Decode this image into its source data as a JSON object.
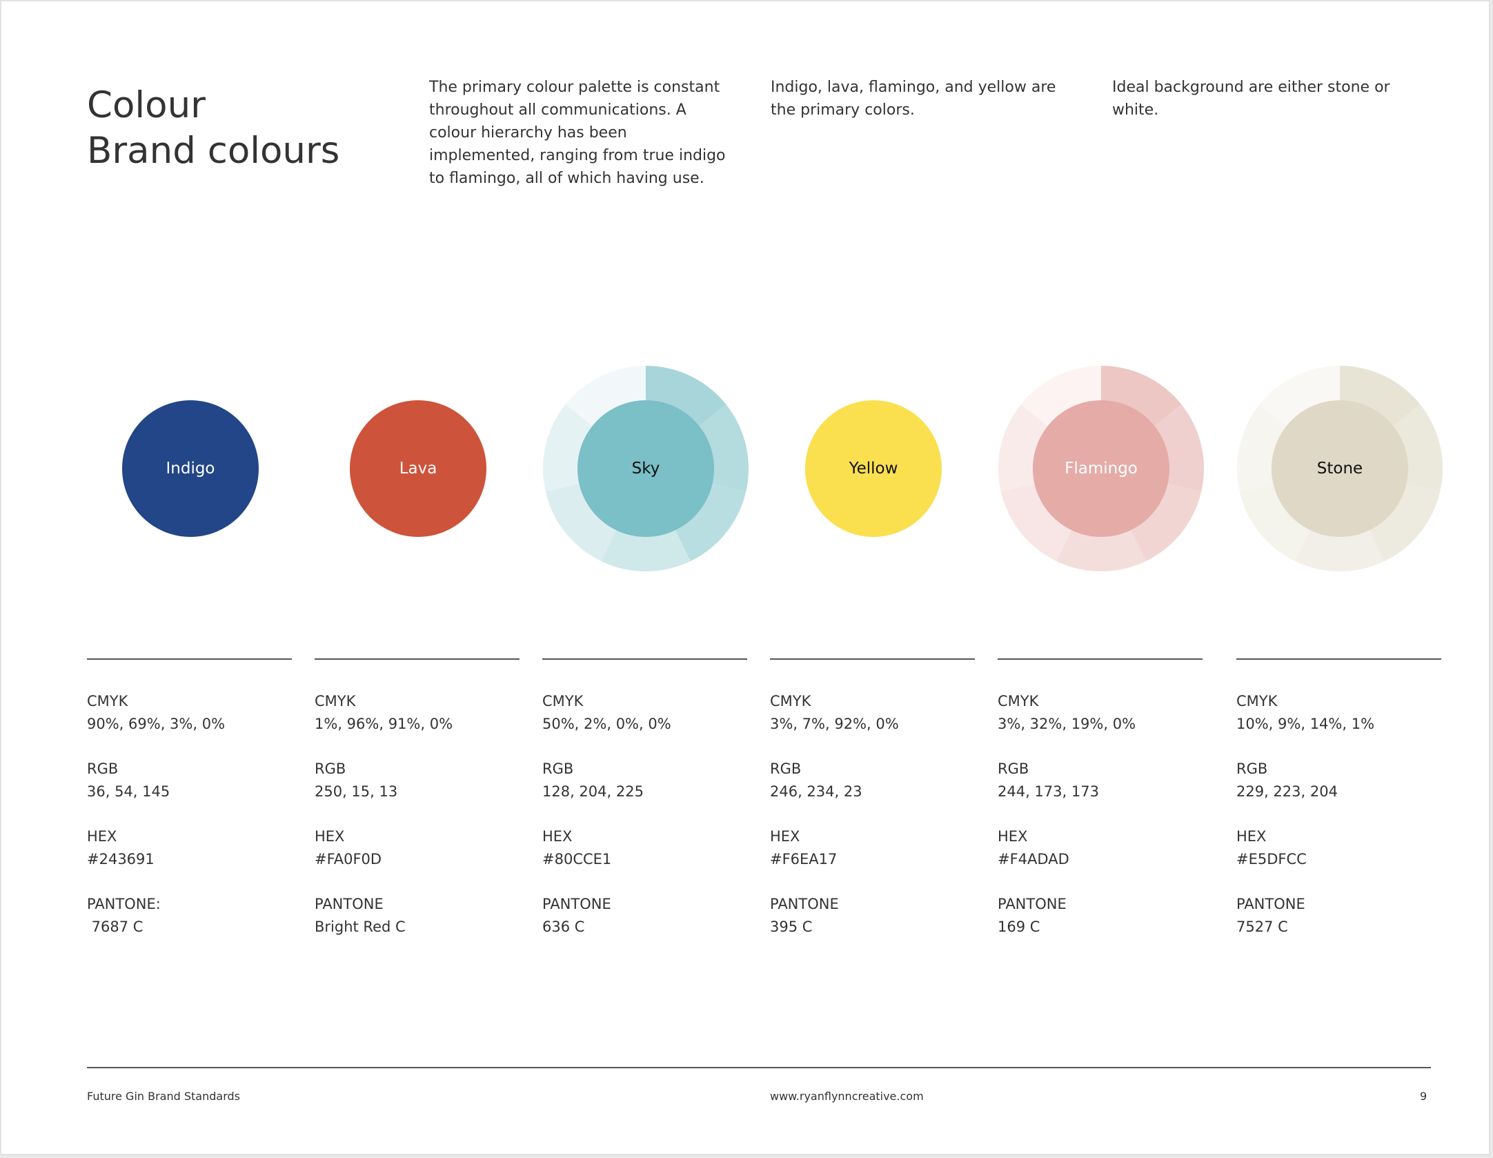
{
  "title": {
    "line1": "Colour",
    "line2": "Brand colours"
  },
  "intro": [
    "The primary colour palette is constant throughout all communications. A colour hierarchy has been implemented, ranging from true indigo to flamingo, all of which having use.",
    "Indigo, lava, flamingo, and yellow are the primary colors.",
    "Ideal background are either stone or white."
  ],
  "swatches": [
    {
      "name": "Indigo",
      "fill": "#224687",
      "label_color": "#ffffff",
      "ring": false,
      "cmyk_label": "CMYK",
      "cmyk": "90%, 69%, 3%, 0%",
      "rgb_label": "RGB",
      "rgb": "36, 54, 145",
      "hex_label": "HEX",
      "hex": "#243691",
      "pantone_label": "PANTONE:",
      "pantone": " 7687 C"
    },
    {
      "name": "Lava",
      "fill": "#cd533b",
      "label_color": "#ffffff",
      "ring": false,
      "cmyk_label": "CMYK",
      "cmyk": "1%, 96%, 91%, 0%",
      "rgb_label": "RGB",
      "rgb": "250, 15, 13",
      "hex_label": "HEX",
      "hex": "#FA0F0D",
      "pantone_label": "PANTONE",
      "pantone": "Bright Red C"
    },
    {
      "name": "Sky",
      "fill": "#7bbfc7",
      "label_color": "#111111",
      "ring": true,
      "ring_colors": [
        "#a8d5d9",
        "#b4dbde",
        "#b9dee1",
        "#cfe8ea",
        "#dcedef",
        "#e5f2f3",
        "#f2f8f9"
      ],
      "cmyk_label": "CMYK",
      "cmyk": "50%, 2%, 0%, 0%",
      "rgb_label": "RGB",
      "rgb": "128, 204, 225",
      "hex_label": "HEX",
      "hex": "#80CCE1",
      "pantone_label": "PANTONE",
      "pantone": "636 C"
    },
    {
      "name": "Yellow",
      "fill": "#fadf4f",
      "label_color": "#111111",
      "ring": false,
      "cmyk_label": "CMYK",
      "cmyk": "3%, 7%, 92%, 0%",
      "rgb_label": "RGB",
      "rgb": "246, 234, 23",
      "hex_label": "HEX",
      "hex": "#F6EA17",
      "pantone_label": "PANTONE",
      "pantone": "395 C"
    },
    {
      "name": "Flamingo",
      "fill": "#e5aba7",
      "label_color": "#ffffff",
      "ring": true,
      "ring_colors": [
        "#ecc7c4",
        "#efd0ce",
        "#f1d5d3",
        "#f4dedc",
        "#f7e6e5",
        "#f9ebea",
        "#fcf3f2"
      ],
      "cmyk_label": "CMYK",
      "cmyk": "3%, 32%, 19%, 0%",
      "rgb_label": "RGB",
      "rgb": "244, 173, 173",
      "hex_label": "HEX",
      "hex": "#F4ADAD",
      "pantone_label": "PANTONE",
      "pantone": "169 C"
    },
    {
      "name": "Stone",
      "fill": "#dfd8c6",
      "label_color": "#111111",
      "ring": true,
      "ring_colors": [
        "#e7e4d6",
        "#ebe8dc",
        "#edebe0",
        "#f1efe7",
        "#f4f3ec",
        "#f6f5f0",
        "#f9f8f5"
      ],
      "cmyk_label": "CMYK",
      "cmyk": "10%, 9%, 14%, 1%",
      "rgb_label": "RGB",
      "rgb": "229, 223, 204",
      "hex_label": "HEX",
      "hex": "#E5DFCC",
      "pantone_label": "PANTONE",
      "pantone": "7527 C"
    }
  ],
  "footer": {
    "left": "Future Gin Brand Standards",
    "center": "www.ryanflynncreative.com",
    "page": "9"
  }
}
